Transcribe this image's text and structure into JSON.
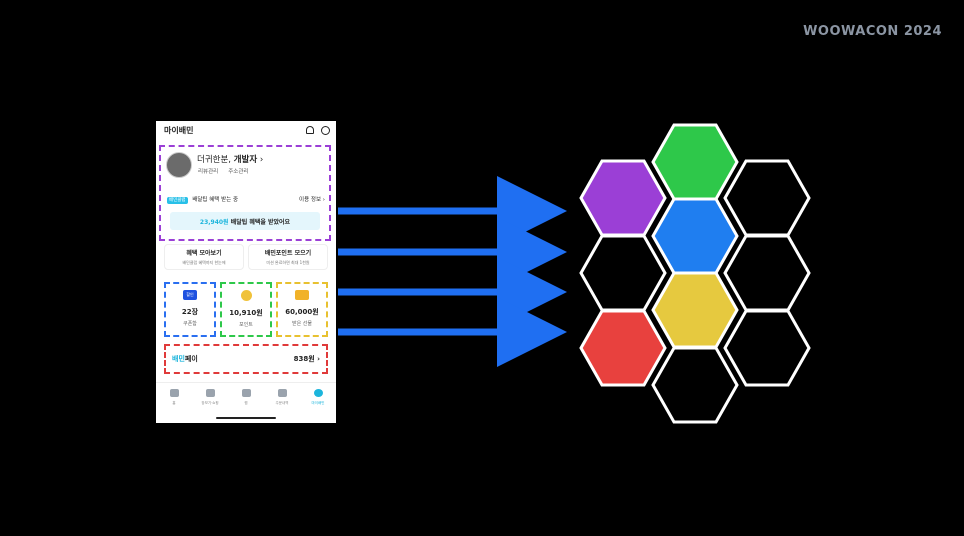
{
  "brand": "WOOWACON 2024",
  "phone": {
    "title": "마이배민",
    "icons": [
      "bell-icon",
      "gear-icon"
    ],
    "profile": {
      "greeting": "더귀한분,",
      "name": "개발자",
      "links": [
        "리뷰관리",
        "주소관리"
      ],
      "member_badge": "배민클럽",
      "member_text": "배달팁 혜택 받는 중",
      "usage_info": "이용 정보",
      "benefit_amount": "23,940원",
      "benefit_text": "배달팁 혜택을 받았어요"
    },
    "menus": [
      {
        "title": "혜택 모아보기",
        "sub": "배민클럽 혜택까지 한눈에"
      },
      {
        "title": "배민포인트 모으기",
        "sub": "미션 완료하면 최대 1천원"
      }
    ],
    "cards": [
      {
        "value": "22장",
        "label": "쿠폰함",
        "icon": "coupon-icon",
        "icon_text": "할인"
      },
      {
        "value": "10,910원",
        "label": "포인트",
        "icon": "point-icon"
      },
      {
        "value": "60,000원",
        "label": "받은 선물",
        "icon": "gift-icon"
      }
    ],
    "pay": {
      "logo": "배민",
      "logo2": "페이",
      "amount": "838원"
    },
    "tabs": [
      "홈",
      "장보기·쇼핑",
      "찜",
      "주문내역",
      "마이배민"
    ]
  },
  "colors": {
    "purple": "#9b3fd6",
    "green": "#2ec84a",
    "blue": "#1f7ef0",
    "yellow": "#e6c93f",
    "red": "#e8413e",
    "arrow": "#1f6ff2"
  }
}
